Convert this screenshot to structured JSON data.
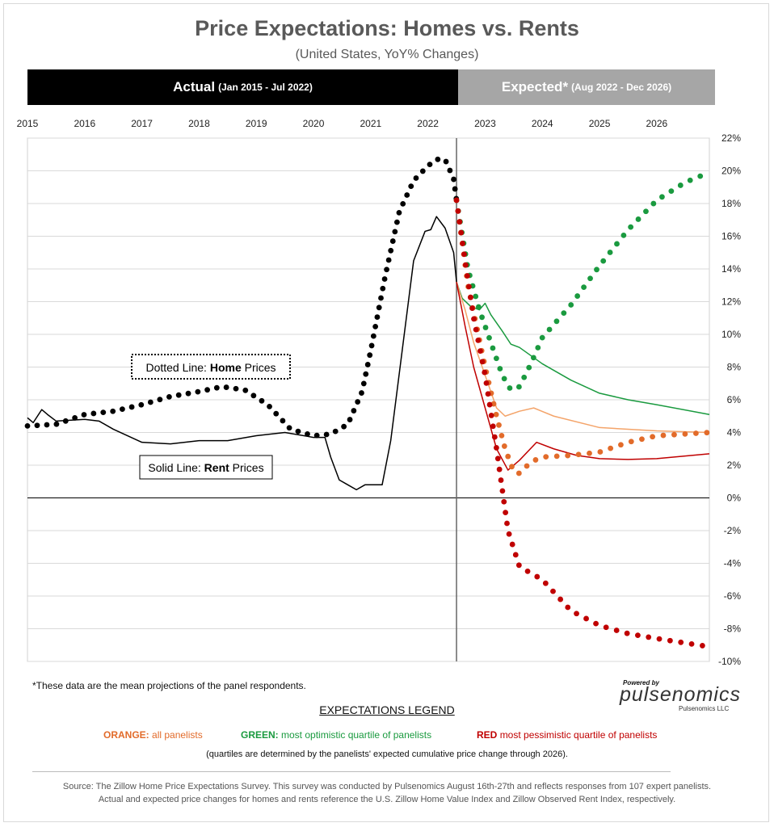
{
  "title": "Price Expectations: Homes vs. Rents",
  "subtitle": "(United States, YoY% Changes)",
  "band_actual": {
    "label": "Actual",
    "range": "(Jan 2015 - Jul 2022)"
  },
  "band_expected": {
    "label": "Expected*",
    "range": "(Aug 2022 - Dec 2026)"
  },
  "footnote": "*These data are the mean projections of the panel respondents.",
  "brand": {
    "powered": "Powered by",
    "name": "pulsenomics",
    "company": "Pulsenomics LLC"
  },
  "legend": {
    "title": "EXPECTATIONS LEGEND",
    "orange_key": "ORANGE:",
    "orange_text": "all panelists",
    "green_key": "GREEN:",
    "green_text": "most optimistic quartile of panelists",
    "red_key": "RED",
    "red_text": "most pessimistic quartile of panelists",
    "note": "(quartiles are determined by the panelists' expected cumulative price change through 2026)."
  },
  "source_line1": "Source: The Zillow Home Price Expectations Survey. This survey was conducted by Pulsenomics August 16th-27th and reflects responses from 107 expert panelists.",
  "source_line2": "Actual and expected price changes for homes and rents reference the U.S. Zillow Home Value Index and Zillow Observed Rent Index, respectively.",
  "chart_data": {
    "type": "line",
    "x_axis": {
      "ticks": [
        "2015",
        "2016",
        "2017",
        "2018",
        "2019",
        "2020",
        "2021",
        "2022",
        "2023",
        "2024",
        "2025",
        "2026"
      ],
      "range": [
        2015.0,
        2026.92
      ]
    },
    "y_axis": {
      "ticks": [
        "22%",
        "20%",
        "18%",
        "16%",
        "14%",
        "12%",
        "10%",
        "8%",
        "6%",
        "4%",
        "2%",
        "0%",
        "-2%",
        "-4%",
        "-6%",
        "-8%",
        "-10%"
      ],
      "range": [
        -10,
        22
      ],
      "position": "right"
    },
    "grid": "horizontal",
    "divider_x": 2022.5,
    "annotations": {
      "home": {
        "prefix": "Dotted Line: ",
        "bold": "Home",
        "suffix": " Prices"
      },
      "rent": {
        "prefix": "Solid Line: ",
        "bold": "Rent",
        "suffix": " Prices"
      }
    },
    "colors": {
      "actual": "#000000",
      "orange_line": "#f4a46a",
      "orange_dot": "#e26b2a",
      "green": "#1a9a3f",
      "red": "#c00000"
    },
    "series": [
      {
        "id": "home-actual",
        "style": "dotted",
        "points": [
          [
            2015.0,
            4.4
          ],
          [
            2015.5,
            4.5
          ],
          [
            2016.0,
            5.1
          ],
          [
            2016.5,
            5.3
          ],
          [
            2017.0,
            5.7
          ],
          [
            2017.5,
            6.2
          ],
          [
            2018.0,
            6.5
          ],
          [
            2018.4,
            6.8
          ],
          [
            2018.8,
            6.6
          ],
          [
            2019.2,
            5.7
          ],
          [
            2019.6,
            4.2
          ],
          [
            2020.0,
            3.8
          ],
          [
            2020.3,
            3.9
          ],
          [
            2020.6,
            4.5
          ],
          [
            2020.85,
            6.5
          ],
          [
            2021.0,
            9.0
          ],
          [
            2021.25,
            13.5
          ],
          [
            2021.5,
            17.5
          ],
          [
            2021.75,
            19.4
          ],
          [
            2022.0,
            20.3
          ],
          [
            2022.15,
            20.7
          ],
          [
            2022.3,
            20.7
          ],
          [
            2022.45,
            19.5
          ],
          [
            2022.5,
            18.2
          ]
        ]
      },
      {
        "id": "rent-actual",
        "style": "solid",
        "points": [
          [
            2015.0,
            4.9
          ],
          [
            2015.1,
            4.6
          ],
          [
            2015.25,
            5.4
          ],
          [
            2015.35,
            5.1
          ],
          [
            2015.5,
            4.7
          ],
          [
            2016.0,
            4.8
          ],
          [
            2016.25,
            4.7
          ],
          [
            2016.5,
            4.2
          ],
          [
            2017.0,
            3.4
          ],
          [
            2017.5,
            3.3
          ],
          [
            2018.0,
            3.5
          ],
          [
            2018.5,
            3.5
          ],
          [
            2019.0,
            3.8
          ],
          [
            2019.5,
            4.0
          ],
          [
            2020.0,
            3.7
          ],
          [
            2020.2,
            3.7
          ],
          [
            2020.3,
            2.5
          ],
          [
            2020.45,
            1.1
          ],
          [
            2020.6,
            0.8
          ],
          [
            2020.75,
            0.5
          ],
          [
            2020.9,
            0.8
          ],
          [
            2021.1,
            0.8
          ],
          [
            2021.2,
            0.8
          ],
          [
            2021.35,
            3.5
          ],
          [
            2021.55,
            9.0
          ],
          [
            2021.75,
            14.5
          ],
          [
            2021.95,
            16.3
          ],
          [
            2022.05,
            16.4
          ],
          [
            2022.15,
            17.2
          ],
          [
            2022.3,
            16.5
          ],
          [
            2022.45,
            15.0
          ],
          [
            2022.5,
            13.2
          ]
        ]
      },
      {
        "id": "home-green",
        "style": "dotted",
        "points": [
          [
            2022.5,
            18.2
          ],
          [
            2022.7,
            14.0
          ],
          [
            2022.9,
            11.5
          ],
          [
            2023.1,
            9.5
          ],
          [
            2023.3,
            7.5
          ],
          [
            2023.45,
            6.6
          ],
          [
            2023.6,
            6.8
          ],
          [
            2023.8,
            8.2
          ],
          [
            2024.0,
            9.8
          ],
          [
            2024.5,
            11.8
          ],
          [
            2025.0,
            14.2
          ],
          [
            2025.5,
            16.4
          ],
          [
            2026.0,
            18.2
          ],
          [
            2026.5,
            19.3
          ],
          [
            2026.92,
            19.9
          ]
        ]
      },
      {
        "id": "home-orange",
        "style": "dotted",
        "points": [
          [
            2022.5,
            18.2
          ],
          [
            2022.7,
            13.0
          ],
          [
            2022.85,
            10.5
          ],
          [
            2023.0,
            8.0
          ],
          [
            2023.2,
            5.0
          ],
          [
            2023.35,
            3.0
          ],
          [
            2023.5,
            1.6
          ],
          [
            2023.6,
            1.5
          ],
          [
            2023.8,
            2.2
          ],
          [
            2024.0,
            2.5
          ],
          [
            2024.5,
            2.6
          ],
          [
            2025.0,
            2.8
          ],
          [
            2025.5,
            3.4
          ],
          [
            2026.0,
            3.8
          ],
          [
            2026.92,
            4.0
          ]
        ]
      },
      {
        "id": "home-red",
        "style": "dotted",
        "points": [
          [
            2022.5,
            18.2
          ],
          [
            2022.65,
            14.5
          ],
          [
            2022.8,
            11.0
          ],
          [
            2023.0,
            7.5
          ],
          [
            2023.2,
            3.0
          ],
          [
            2023.4,
            -2.0
          ],
          [
            2023.6,
            -4.2
          ],
          [
            2024.0,
            -5.0
          ],
          [
            2024.5,
            -6.9
          ],
          [
            2025.0,
            -7.8
          ],
          [
            2025.5,
            -8.3
          ],
          [
            2026.0,
            -8.6
          ],
          [
            2026.92,
            -9.1
          ]
        ]
      },
      {
        "id": "rent-green",
        "style": "solid",
        "points": [
          [
            2022.5,
            13.2
          ],
          [
            2022.6,
            12.2
          ],
          [
            2022.75,
            11.7
          ],
          [
            2022.9,
            11.5
          ],
          [
            2023.0,
            11.9
          ],
          [
            2023.1,
            11.2
          ],
          [
            2023.3,
            10.2
          ],
          [
            2023.45,
            9.4
          ],
          [
            2023.6,
            9.2
          ],
          [
            2024.0,
            8.2
          ],
          [
            2024.5,
            7.2
          ],
          [
            2025.0,
            6.4
          ],
          [
            2025.5,
            6.0
          ],
          [
            2026.0,
            5.7
          ],
          [
            2026.92,
            5.1
          ]
        ]
      },
      {
        "id": "rent-orange",
        "style": "solid",
        "points": [
          [
            2022.5,
            13.2
          ],
          [
            2022.65,
            11.5
          ],
          [
            2022.8,
            9.5
          ],
          [
            2023.0,
            7.5
          ],
          [
            2023.2,
            5.5
          ],
          [
            2023.35,
            5.0
          ],
          [
            2023.6,
            5.3
          ],
          [
            2023.85,
            5.5
          ],
          [
            2024.2,
            5.0
          ],
          [
            2025.0,
            4.3
          ],
          [
            2025.5,
            4.2
          ],
          [
            2026.0,
            4.1
          ],
          [
            2026.92,
            4.0
          ]
        ]
      },
      {
        "id": "rent-red",
        "style": "solid",
        "points": [
          [
            2022.5,
            13.2
          ],
          [
            2022.65,
            10.5
          ],
          [
            2022.8,
            8.0
          ],
          [
            2023.0,
            5.5
          ],
          [
            2023.2,
            3.0
          ],
          [
            2023.4,
            1.7
          ],
          [
            2023.6,
            2.3
          ],
          [
            2023.9,
            3.4
          ],
          [
            2024.2,
            3.0
          ],
          [
            2024.6,
            2.6
          ],
          [
            2025.0,
            2.4
          ],
          [
            2025.5,
            2.35
          ],
          [
            2026.0,
            2.4
          ],
          [
            2026.92,
            2.7
          ]
        ]
      }
    ]
  }
}
